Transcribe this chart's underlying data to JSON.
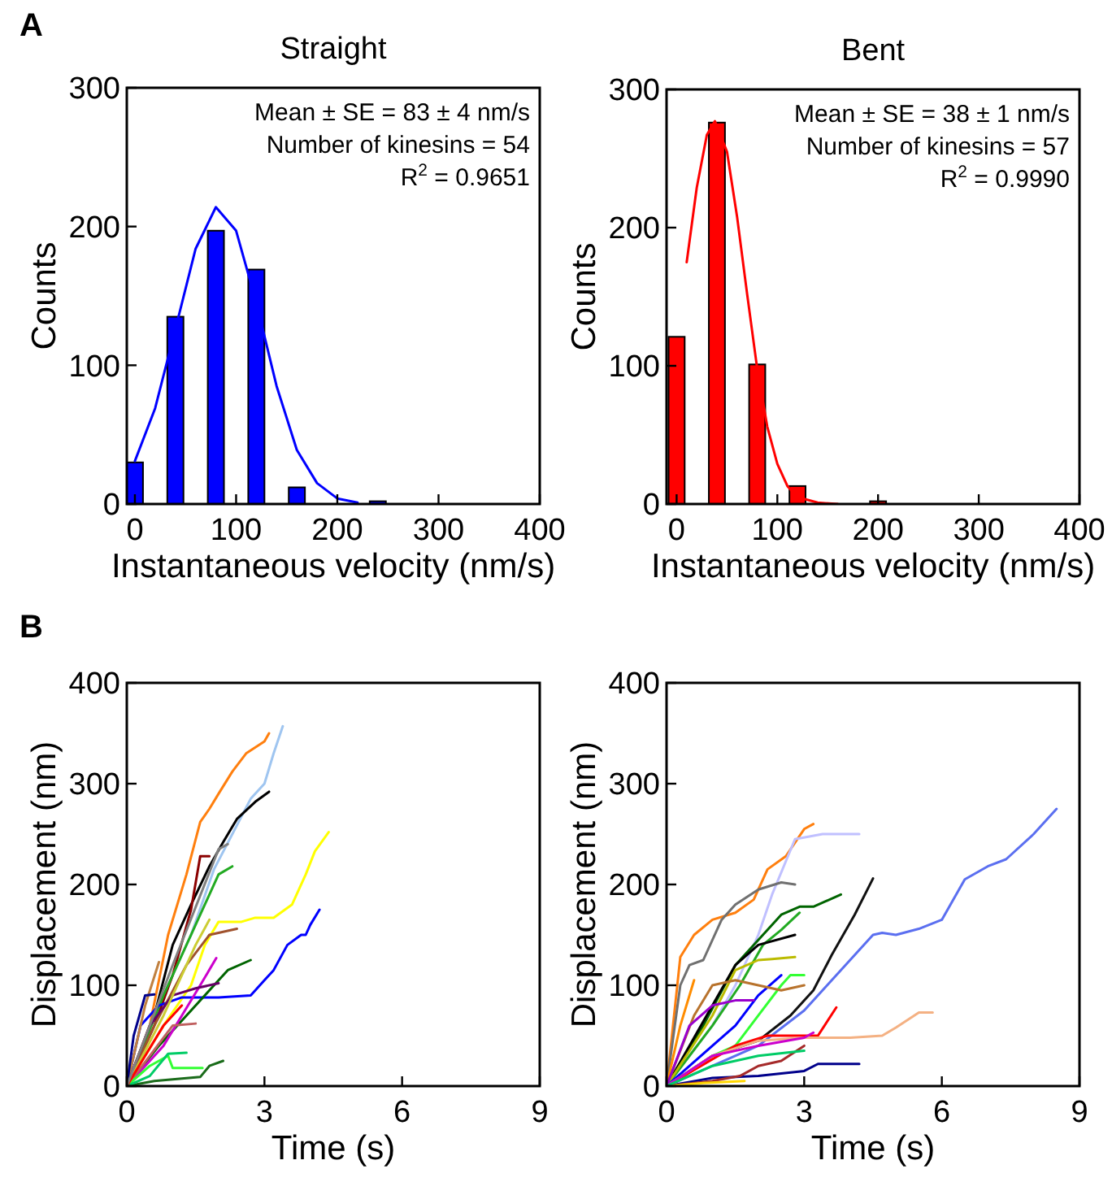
{
  "chart_data": [
    {
      "type": "bar",
      "title": "Straight",
      "xlabel": "Instantaneous velocity (nm/s)",
      "ylabel": "Counts",
      "xlim": [
        -8,
        400
      ],
      "ylim": [
        0,
        300
      ],
      "xticks": [
        0,
        100,
        200,
        300,
        400
      ],
      "yticks": [
        0,
        100,
        200,
        300
      ],
      "annotations": [
        "A",
        "Mean ± SE = 83 ± 4 nm/s",
        "Number of kinesins = 54",
        "R$^{2}$ = 0.9651"
      ],
      "series": [
        {
          "type": "bar",
          "color": "#0000ff",
          "x": [
            0,
            40,
            80,
            120,
            160,
            200,
            240,
            280,
            320,
            360,
            400
          ],
          "values": [
            30,
            135,
            197,
            169,
            12,
            0,
            2,
            0,
            0,
            0,
            0
          ]
        },
        {
          "type": "line",
          "color": "#0000ff",
          "x": [
            0,
            20,
            40,
            60,
            80,
            100,
            120,
            140,
            160,
            180,
            200,
            220
          ],
          "values": [
            31,
            69,
            126,
            184,
            214,
            197,
            145,
            85,
            39,
            15,
            4,
            1
          ]
        }
      ]
    },
    {
      "type": "bar",
      "title": "Bent",
      "xlabel": "Instantaneous velocity (nm/s)",
      "ylabel": "Counts",
      "xlim": [
        -10,
        400
      ],
      "ylim": [
        0,
        300
      ],
      "xticks": [
        0,
        100,
        200,
        300,
        400
      ],
      "yticks": [
        0,
        100,
        200,
        300
      ],
      "annotations": [
        "Mean ± SE = 38 ± 1 nm/s",
        "Number of kinesins = 57",
        "R$^{2}$ = 0.9990"
      ],
      "series": [
        {
          "type": "bar",
          "color": "#ff0000",
          "x": [
            0,
            40,
            80,
            120,
            160,
            200,
            240,
            280,
            320,
            360,
            400
          ],
          "values": [
            121,
            276,
            101,
            13,
            0,
            2,
            0,
            0,
            0,
            0,
            0
          ]
        },
        {
          "type": "line",
          "color": "#ff0000",
          "x": [
            10,
            20,
            30,
            38,
            50,
            60,
            70,
            80,
            90,
            100,
            110,
            120,
            140,
            160
          ],
          "values": [
            175,
            229,
            267,
            277,
            255,
            208,
            152,
            98,
            56,
            29,
            13,
            5,
            1,
            0
          ]
        }
      ]
    },
    {
      "type": "line",
      "xlabel": "Time (s)",
      "ylabel": "Displacement (nm)",
      "xlim": [
        0,
        9
      ],
      "ylim": [
        0,
        400
      ],
      "xticks": [
        0,
        3,
        6,
        9
      ],
      "yticks": [
        0,
        100,
        200,
        300,
        400
      ],
      "annotations": [
        "B"
      ],
      "series": [
        {
          "color": "#ff7f0e",
          "x": [
            0,
            0.5,
            0.9,
            1.3,
            1.6,
            1.8,
            2.0,
            2.3,
            2.6,
            3.0,
            3.1
          ],
          "values": [
            0,
            60,
            150,
            210,
            262,
            275,
            290,
            312,
            330,
            342,
            350
          ]
        },
        {
          "color": "#9fc5f0",
          "x": [
            0,
            0.8,
            1.4,
            1.9,
            2.3,
            2.7,
            3.0,
            3.2,
            3.4
          ],
          "values": [
            0,
            90,
            150,
            215,
            250,
            285,
            300,
            330,
            357
          ]
        },
        {
          "color": "#000000",
          "x": [
            0,
            0.6,
            1.0,
            1.4,
            1.8,
            2.1,
            2.4,
            2.8,
            3.1
          ],
          "values": [
            0,
            70,
            140,
            180,
            218,
            242,
            265,
            282,
            292
          ]
        },
        {
          "color": "#8b0000",
          "x": [
            0,
            0.6,
            1.0,
            1.4,
            1.6,
            1.8
          ],
          "values": [
            0,
            60,
            110,
            175,
            228,
            228
          ]
        },
        {
          "color": "#22aa22",
          "x": [
            0,
            0.8,
            1.5,
            2.0,
            2.3
          ],
          "values": [
            0,
            90,
            160,
            210,
            218
          ]
        },
        {
          "color": "#ffff00",
          "x": [
            0,
            0.8,
            1.4,
            1.7,
            2.0,
            2.5,
            2.8,
            3.2,
            3.6,
            3.9,
            4.1,
            4.4
          ],
          "values": [
            0,
            60,
            100,
            140,
            163,
            163,
            167,
            167,
            180,
            210,
            233,
            252
          ]
        },
        {
          "color": "#0000ff",
          "x": [
            0,
            0.3,
            0.7,
            1.2,
            2.0,
            2.7,
            3.0,
            3.2,
            3.5,
            3.8,
            3.9,
            4.0,
            4.2
          ],
          "values": [
            0,
            60,
            80,
            88,
            88,
            90,
            105,
            115,
            140,
            150,
            150,
            160,
            175
          ]
        },
        {
          "color": "#006400",
          "x": [
            0,
            0.7,
            1.3,
            1.8,
            2.2,
            2.7
          ],
          "values": [
            0,
            40,
            70,
            95,
            115,
            125
          ]
        },
        {
          "color": "#a0522d",
          "x": [
            0,
            0.6,
            1.3,
            1.8,
            2.4
          ],
          "values": [
            0,
            60,
            120,
            150,
            156
          ]
        },
        {
          "color": "#c08040",
          "x": [
            0,
            0.4,
            0.7
          ],
          "values": [
            0,
            80,
            123
          ]
        },
        {
          "color": "#cc00cc",
          "x": [
            0,
            0.8,
            1.2,
            1.6,
            1.95
          ],
          "values": [
            0,
            40,
            70,
            100,
            127
          ]
        },
        {
          "color": "#660066",
          "x": [
            0,
            0.5,
            1.0,
            1.5,
            2.0
          ],
          "values": [
            0,
            60,
            90,
            97,
            102
          ]
        },
        {
          "color": "#00008b",
          "x": [
            0,
            0.15,
            0.4,
            0.6
          ],
          "values": [
            0,
            50,
            90,
            91
          ]
        },
        {
          "color": "#c06060",
          "x": [
            0,
            0.5,
            1.0,
            1.5
          ],
          "values": [
            0,
            30,
            60,
            62
          ]
        },
        {
          "color": "#33ff33",
          "x": [
            0,
            0.5,
            0.9,
            1.0,
            1.65
          ],
          "values": [
            0,
            20,
            30,
            18,
            18
          ]
        },
        {
          "color": "#1a6b1a",
          "x": [
            0,
            0.6,
            1.6,
            1.8,
            2.1
          ],
          "values": [
            0,
            5,
            9,
            20,
            25
          ]
        },
        {
          "color": "#00cc66",
          "x": [
            0,
            0.5,
            0.9,
            1.3
          ],
          "values": [
            0,
            10,
            32,
            33
          ]
        },
        {
          "color": "#cccc33",
          "x": [
            0,
            0.8,
            1.5,
            1.8
          ],
          "values": [
            0,
            70,
            140,
            165
          ]
        },
        {
          "color": "#ff0000",
          "x": [
            0,
            0.4,
            0.8,
            1.2
          ],
          "values": [
            0,
            30,
            60,
            80
          ]
        },
        {
          "color": "#808080",
          "x": [
            0,
            1.0,
            2.0,
            2.2
          ],
          "values": [
            0,
            120,
            235,
            240
          ]
        }
      ]
    },
    {
      "type": "line",
      "xlabel": "Time (s)",
      "ylabel": "Displacement (nm)",
      "xlim": [
        0,
        9
      ],
      "ylim": [
        0,
        400
      ],
      "xticks": [
        0,
        3,
        6,
        9
      ],
      "yticks": [
        0,
        100,
        200,
        300,
        400
      ],
      "series": [
        {
          "color": "#5b6ff0",
          "x": [
            0,
            1,
            2,
            3,
            3.5,
            4,
            4.5,
            4.7,
            5,
            5.5,
            6,
            6.5,
            7,
            7.4,
            8,
            8.5
          ],
          "values": [
            0,
            20,
            40,
            75,
            100,
            125,
            150,
            152,
            150,
            156,
            165,
            205,
            218,
            225,
            250,
            275
          ]
        },
        {
          "color": "#ff7f0e",
          "x": [
            0,
            0.3,
            0.6,
            1,
            1.5,
            1.9,
            2.2,
            2.6,
            3,
            3.2
          ],
          "values": [
            0,
            128,
            150,
            165,
            172,
            185,
            215,
            228,
            255,
            260
          ]
        },
        {
          "color": "#c0c0ff",
          "x": [
            0,
            1,
            1.5,
            2.0,
            2.3,
            2.8,
            3.4,
            4.2
          ],
          "values": [
            0,
            60,
            100,
            150,
            190,
            245,
            250,
            250
          ]
        },
        {
          "color": "#707070",
          "x": [
            0,
            0.3,
            0.5,
            0.8,
            1.2,
            1.5,
            2,
            2.5,
            2.8
          ],
          "values": [
            0,
            100,
            120,
            125,
            165,
            180,
            195,
            202,
            200
          ]
        },
        {
          "color": "#006400",
          "x": [
            0,
            0.8,
            1.5,
            2.0,
            2.5,
            2.9,
            3.2,
            3.8
          ],
          "values": [
            0,
            60,
            120,
            145,
            170,
            178,
            178,
            190
          ]
        },
        {
          "color": "#22aa22",
          "x": [
            0,
            1,
            1.6,
            2.1,
            2.5,
            2.9
          ],
          "values": [
            0,
            60,
            100,
            140,
            155,
            172
          ]
        },
        {
          "color": "#000000",
          "x": [
            0,
            0.5,
            1,
            1.5,
            2,
            2.8
          ],
          "values": [
            0,
            40,
            80,
            120,
            140,
            150
          ]
        },
        {
          "color": "#111111",
          "x": [
            0,
            1,
            2,
            2.7,
            3.2,
            3.6,
            4.1,
            4.5
          ],
          "values": [
            0,
            30,
            45,
            70,
            95,
            130,
            170,
            206
          ]
        },
        {
          "color": "#bbbb00",
          "x": [
            0,
            1,
            1.5,
            2,
            2.3,
            2.8
          ],
          "values": [
            0,
            70,
            115,
            125,
            126,
            128
          ]
        },
        {
          "color": "#0000ff",
          "x": [
            0,
            1,
            1.5,
            2.0,
            2.5
          ],
          "values": [
            0,
            40,
            60,
            90,
            110
          ]
        },
        {
          "color": "#33ff33",
          "x": [
            0,
            1,
            1.5,
            2,
            2.5,
            2.7,
            3
          ],
          "values": [
            0,
            30,
            40,
            70,
            100,
            110,
            110
          ]
        },
        {
          "color": "#b8732d",
          "x": [
            0,
            0.6,
            1,
            1.5,
            2,
            2.5,
            3
          ],
          "values": [
            0,
            70,
            100,
            105,
            100,
            95,
            100
          ]
        },
        {
          "color": "#ff8c00",
          "x": [
            0,
            0.3,
            0.6
          ],
          "values": [
            0,
            60,
            105
          ]
        },
        {
          "color": "#ff0000",
          "x": [
            0,
            1.5,
            2.2,
            3.3,
            3.7
          ],
          "values": [
            0,
            40,
            50,
            50,
            78
          ]
        },
        {
          "color": "#f4b183",
          "x": [
            0,
            1,
            2,
            3,
            4.0,
            4.7,
            5,
            5.5,
            5.8
          ],
          "values": [
            0,
            30,
            45,
            48,
            48,
            50,
            58,
            73,
            73
          ]
        },
        {
          "color": "#00008b",
          "x": [
            0,
            1,
            2,
            3,
            3.3,
            4.2
          ],
          "values": [
            0,
            8,
            10,
            15,
            22,
            22
          ]
        },
        {
          "color": "#9900cc",
          "x": [
            0,
            0.5,
            1,
            1.5,
            1.9
          ],
          "values": [
            0,
            60,
            80,
            85,
            85
          ]
        },
        {
          "color": "#cc00cc",
          "x": [
            0,
            1,
            2,
            3,
            3.2
          ],
          "values": [
            0,
            30,
            40,
            48,
            53
          ]
        },
        {
          "color": "#a52a2a",
          "x": [
            0,
            1,
            1.6,
            2,
            2.5,
            3
          ],
          "values": [
            0,
            5,
            10,
            20,
            25,
            40
          ]
        },
        {
          "color": "#ffd700",
          "x": [
            0,
            0.8,
            1.7
          ],
          "values": [
            0,
            3,
            5
          ]
        },
        {
          "color": "#00cc66",
          "x": [
            0,
            1,
            2,
            3
          ],
          "values": [
            0,
            20,
            30,
            35
          ]
        }
      ]
    }
  ]
}
